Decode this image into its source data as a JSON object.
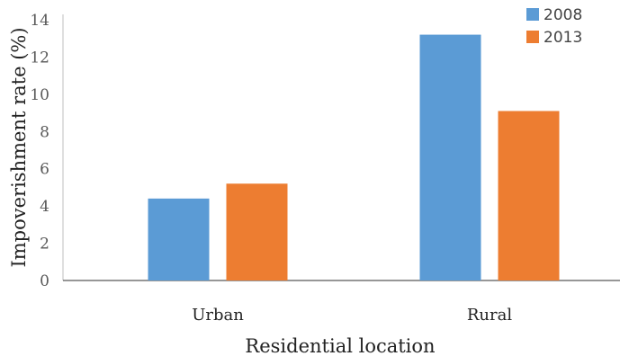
{
  "chart_data": {
    "type": "bar",
    "title": "",
    "xlabel": "Residential location",
    "ylabel": "Impoverishment rate (%)",
    "categories": [
      "Urban",
      "Rural"
    ],
    "series": [
      {
        "name": "2008",
        "values": [
          4.4,
          13.2
        ],
        "color": "#5b9bd5"
      },
      {
        "name": "2013",
        "values": [
          5.2,
          9.1
        ],
        "color": "#ed7d31"
      }
    ],
    "ylim": [
      0,
      14
    ],
    "yticks": [
      "0",
      "2",
      "4",
      "6",
      "8",
      "10",
      "12",
      "14"
    ],
    "grid": false,
    "legend": "top-right"
  }
}
